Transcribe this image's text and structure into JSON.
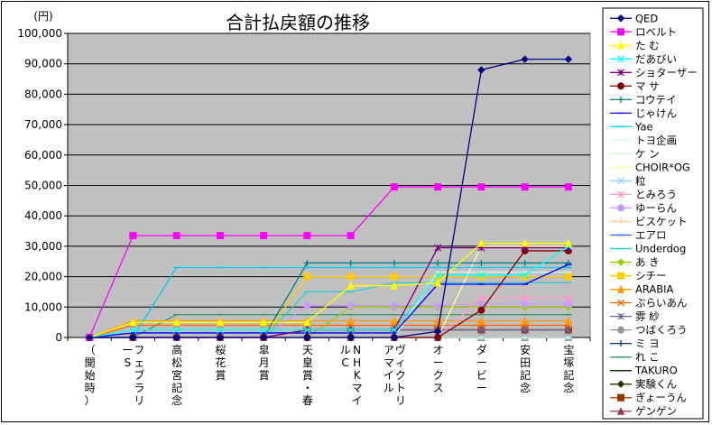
{
  "chart_data": {
    "type": "line",
    "title": "合計払戻額の推移",
    "y_unit": "(円)",
    "ylim": [
      0,
      100000
    ],
    "y_ticks": [
      "0",
      "10,000",
      "20,000",
      "30,000",
      "40,000",
      "50,000",
      "60,000",
      "70,000",
      "80,000",
      "90,000",
      "100,000"
    ],
    "y_tick_values": [
      0,
      10000,
      20000,
      30000,
      40000,
      50000,
      60000,
      70000,
      80000,
      90000,
      100000
    ],
    "grid": true,
    "legend_position": "right",
    "categories": [
      "（開始時）",
      "フェブラリーS",
      "高松宮記念",
      "桜花賞",
      "皐月賞",
      "天皇賞・春",
      "NHKマイルC",
      "ヴィクトリアマイル",
      "オークス",
      "ダービー",
      "安田記念",
      "宝塚記念"
    ],
    "category_columns": [
      [
        "（",
        "開",
        "始",
        "時",
        "）"
      ],
      [
        "フ",
        "ェ",
        "ブ",
        "ラ",
        "リ",
        "ー",
        "S"
      ],
      [
        "高",
        "松",
        "宮",
        "記",
        "念"
      ],
      [
        "桜",
        "花",
        "賞"
      ],
      [
        "皐",
        "月",
        "賞"
      ],
      [
        "天",
        "皇",
        "賞",
        "・",
        "春"
      ],
      [
        "N",
        "H",
        "K",
        "マ",
        "イ",
        "ル",
        "C"
      ],
      [
        "ヴ",
        "ィ",
        "ク",
        "ト",
        "リ",
        "ア",
        "マ",
        "イ",
        "ル"
      ],
      [
        "オ",
        "ー",
        "ク",
        "ス"
      ],
      [
        "ダ",
        "ー",
        "ビ",
        "ー"
      ],
      [
        "安",
        "田",
        "記",
        "念"
      ],
      [
        "宝",
        "塚",
        "記",
        "念"
      ]
    ],
    "series": [
      {
        "name": "QED",
        "color": "#000080",
        "marker": "diamond",
        "values": [
          0,
          0,
          0,
          0,
          0,
          0,
          0,
          0,
          2000,
          88000,
          91500,
          91500
        ]
      },
      {
        "name": "ロベルト",
        "color": "#FF00FF",
        "marker": "square",
        "values": [
          0,
          33500,
          33500,
          33500,
          33500,
          33500,
          33500,
          49500,
          49500,
          49500,
          49500,
          49500
        ]
      },
      {
        "name": "た む",
        "color": "#FFFF00",
        "marker": "triangle",
        "values": [
          0,
          5000,
          5000,
          5000,
          5000,
          5000,
          17000,
          17000,
          18000,
          31000,
          31000,
          31000
        ]
      },
      {
        "name": "だあびい",
        "color": "#00FFFF",
        "marker": "x",
        "values": [
          0,
          2500,
          2500,
          2500,
          2500,
          2500,
          2500,
          2500,
          20500,
          20500,
          20500,
          30000
        ]
      },
      {
        "name": "ショターザー",
        "color": "#800080",
        "marker": "asterisk",
        "values": [
          0,
          0,
          0,
          0,
          0,
          2500,
          2500,
          2500,
          29500,
          29500,
          29500,
          29500
        ]
      },
      {
        "name": "マ サ",
        "color": "#800000",
        "marker": "circle",
        "values": [
          0,
          0,
          0,
          0,
          0,
          0,
          0,
          0,
          0,
          9000,
          28500,
          28500
        ]
      },
      {
        "name": "コウテイ",
        "color": "#008080",
        "marker": "plus",
        "values": [
          0,
          0,
          0,
          0,
          0,
          24500,
          24500,
          24500,
          24500,
          24500,
          24500,
          24500
        ]
      },
      {
        "name": "じゃけん",
        "color": "#0000FF",
        "marker": "dash",
        "values": [
          0,
          1500,
          1500,
          1500,
          1500,
          1500,
          1500,
          1500,
          17500,
          17500,
          17500,
          24000
        ]
      },
      {
        "name": "Yae",
        "color": "#00CCFF",
        "marker": "dash",
        "values": [
          0,
          0,
          23000,
          23000,
          23000,
          23000,
          23000,
          23000,
          23000,
          23000,
          23000,
          23000
        ]
      },
      {
        "name": "トヨ企画",
        "color": "#CCFFFF",
        "marker": "dash",
        "values": [
          0,
          0,
          0,
          0,
          0,
          0,
          0,
          0,
          21500,
          21500,
          21500,
          21500
        ]
      },
      {
        "name": "ケ ン",
        "color": "#CCFFCC",
        "marker": "dash",
        "values": [
          0,
          0,
          0,
          0,
          0,
          0,
          0,
          0,
          0,
          0,
          0,
          0
        ]
      },
      {
        "name": "CHOIR*OG",
        "color": "#FFFF99",
        "marker": "dash",
        "values": [
          0,
          0,
          0,
          0,
          0,
          0,
          0,
          0,
          0,
          30000,
          30000,
          30000
        ]
      },
      {
        "name": "粒",
        "color": "#99CCFF",
        "marker": "x",
        "values": [
          0,
          0,
          0,
          0,
          0,
          0,
          0,
          0,
          0,
          0,
          0,
          0
        ]
      },
      {
        "name": "とみろう",
        "color": "#FF99CC",
        "marker": "asterisk",
        "values": [
          0,
          0,
          0,
          0,
          0,
          0,
          0,
          0,
          0,
          13000,
          13000,
          13000
        ]
      },
      {
        "name": "ゆーらん",
        "color": "#CC99FF",
        "marker": "circle",
        "values": [
          0,
          0,
          0,
          0,
          0,
          10500,
          10500,
          10500,
          10500,
          11000,
          11000,
          11000
        ]
      },
      {
        "name": "ビスケット",
        "color": "#FFCC99",
        "marker": "plus",
        "values": [
          0,
          0,
          0,
          0,
          0,
          0,
          0,
          0,
          0,
          0,
          0,
          0
        ]
      },
      {
        "name": "エアロ",
        "color": "#3366FF",
        "marker": "dash",
        "values": [
          0,
          0,
          0,
          0,
          0,
          0,
          0,
          0,
          0,
          0,
          0,
          0
        ]
      },
      {
        "name": "Underdog",
        "color": "#33CCCC",
        "marker": "dash",
        "values": [
          0,
          0,
          0,
          0,
          0,
          15000,
          15000,
          18000,
          18000,
          18000,
          18000,
          18000
        ]
      },
      {
        "name": "あ き",
        "color": "#99CC00",
        "marker": "diamond",
        "values": [
          0,
          0,
          0,
          0,
          0,
          0,
          10000,
          10000,
          10000,
          10000,
          10000,
          10000
        ]
      },
      {
        "name": "シチー",
        "color": "#FFCC00",
        "marker": "square",
        "values": [
          0,
          0,
          0,
          0,
          0,
          20000,
          20000,
          20000,
          20000,
          20000,
          20000,
          20000
        ]
      },
      {
        "name": "ARABIA",
        "color": "#FF9900",
        "marker": "triangle",
        "values": [
          0,
          5500,
          5500,
          5500,
          5500,
          5500,
          5500,
          5500,
          5500,
          5500,
          5500,
          5500
        ]
      },
      {
        "name": "ぶらいあん",
        "color": "#FF6600",
        "marker": "x",
        "values": [
          0,
          4000,
          4000,
          4000,
          4000,
          4000,
          4000,
          4000,
          4000,
          4000,
          4000,
          4000
        ]
      },
      {
        "name": "雰 紗",
        "color": "#666699",
        "marker": "asterisk",
        "values": [
          0,
          0,
          0,
          0,
          0,
          2500,
          2500,
          2500,
          2500,
          2500,
          2500,
          2500
        ]
      },
      {
        "name": "つばくろう",
        "color": "#969696",
        "marker": "circle",
        "values": [
          0,
          0,
          0,
          0,
          0,
          0,
          0,
          0,
          0,
          0,
          0,
          0
        ]
      },
      {
        "name": "ミ ヨ",
        "color": "#003366",
        "marker": "plus",
        "values": [
          0,
          0,
          0,
          0,
          0,
          0,
          0,
          0,
          0,
          0,
          0,
          0
        ]
      },
      {
        "name": "れ こ",
        "color": "#339966",
        "marker": "dash",
        "values": [
          0,
          0,
          7500,
          7500,
          7500,
          7500,
          7500,
          7500,
          7500,
          7500,
          7500,
          7500
        ]
      },
      {
        "name": "TAKURO",
        "color": "#003300",
        "marker": "dash",
        "values": [
          0,
          0,
          0,
          0,
          0,
          0,
          0,
          0,
          0,
          0,
          0,
          0
        ]
      },
      {
        "name": "実験くん",
        "color": "#333300",
        "marker": "diamond",
        "values": [
          0,
          0,
          0,
          0,
          0,
          0,
          0,
          0,
          0,
          0,
          0,
          0
        ]
      },
      {
        "name": "ぎょーうん",
        "color": "#993300",
        "marker": "square",
        "values": [
          0,
          0,
          0,
          0,
          0,
          2500,
          2500,
          2500,
          2500,
          2500,
          2500,
          2500
        ]
      },
      {
        "name": "ゲンゲン",
        "color": "#993366",
        "marker": "triangle",
        "values": [
          0,
          0,
          0,
          0,
          0,
          0,
          0,
          0,
          0,
          0,
          0,
          0
        ]
      }
    ]
  }
}
